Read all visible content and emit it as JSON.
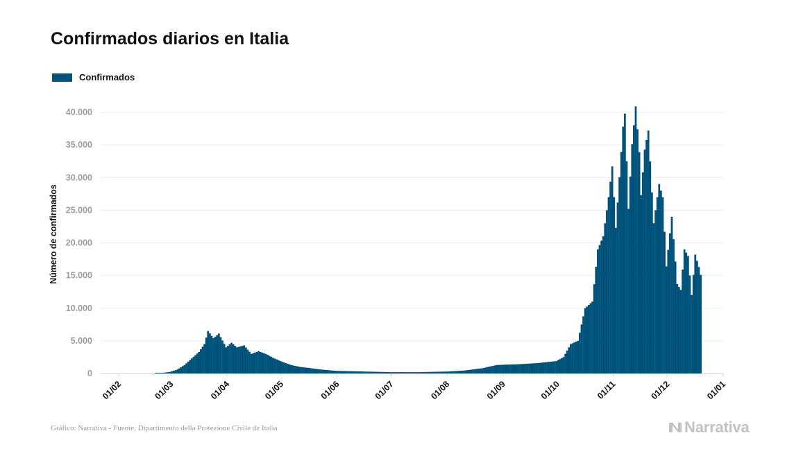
{
  "colors": {
    "bar": "#00527a",
    "grid": "#ececec",
    "tick_text": "#9b9b9b",
    "brand": "#c2c2c2"
  },
  "footer": {
    "source": "Gráfico: Narrativa - Fuente: Dipartimento della Protezione Civile de Italia",
    "brand": "Narrativa",
    "brand_icon": "narrativa-n-logo-icon"
  },
  "chart_data": {
    "type": "bar",
    "title": "Confirmados diarios en Italia",
    "ylabel": "Número de confirmados",
    "xlabel": "",
    "legend": {
      "entries": [
        "Confirmados"
      ],
      "placement": "top-left"
    },
    "grid": true,
    "ylim": [
      0,
      40000
    ],
    "yticks": [
      0,
      5000,
      10000,
      15000,
      20000,
      25000,
      30000,
      35000,
      40000
    ],
    "ytick_labels": [
      "0",
      "5.000",
      "10.000",
      "15.000",
      "20.000",
      "25.000",
      "30.000",
      "35.000",
      "40.000"
    ],
    "xlim": [
      "2020-01-22",
      "2021-01-01"
    ],
    "xticks": [
      "2020-02-01",
      "2020-03-01",
      "2020-04-01",
      "2020-05-01",
      "2020-06-01",
      "2020-07-01",
      "2020-08-01",
      "2020-09-01",
      "2020-10-01",
      "2020-11-01",
      "2020-12-01",
      "2021-01-01"
    ],
    "xtick_labels": [
      "01/02",
      "01/03",
      "01/04",
      "01/05",
      "01/06",
      "01/07",
      "01/08",
      "01/09",
      "01/10",
      "01/11",
      "01/12",
      "01/01"
    ],
    "series": [
      {
        "name": "Confirmados",
        "anchors": [
          [
            "2020-01-24",
            0
          ],
          [
            "2020-02-20",
            0
          ],
          [
            "2020-02-21",
            100
          ],
          [
            "2020-02-25",
            100
          ],
          [
            "2020-02-29",
            250
          ],
          [
            "2020-03-04",
            600
          ],
          [
            "2020-03-08",
            1300
          ],
          [
            "2020-03-12",
            2300
          ],
          [
            "2020-03-16",
            3300
          ],
          [
            "2020-03-19",
            4500
          ],
          [
            "2020-03-21",
            6500
          ],
          [
            "2020-03-24",
            5400
          ],
          [
            "2020-03-27",
            6100
          ],
          [
            "2020-03-31",
            4000
          ],
          [
            "2020-04-03",
            4700
          ],
          [
            "2020-04-06",
            4000
          ],
          [
            "2020-04-10",
            4300
          ],
          [
            "2020-04-14",
            3000
          ],
          [
            "2020-04-18",
            3400
          ],
          [
            "2020-04-22",
            3000
          ],
          [
            "2020-04-26",
            2400
          ],
          [
            "2020-05-01",
            1800
          ],
          [
            "2020-05-06",
            1300
          ],
          [
            "2020-05-11",
            1000
          ],
          [
            "2020-05-16",
            850
          ],
          [
            "2020-05-21",
            650
          ],
          [
            "2020-05-31",
            400
          ],
          [
            "2020-06-15",
            300
          ],
          [
            "2020-07-01",
            200
          ],
          [
            "2020-07-15",
            200
          ],
          [
            "2020-08-01",
            300
          ],
          [
            "2020-08-10",
            450
          ],
          [
            "2020-08-20",
            800
          ],
          [
            "2020-08-28",
            1300
          ],
          [
            "2020-09-08",
            1400
          ],
          [
            "2020-09-20",
            1600
          ],
          [
            "2020-09-30",
            1900
          ],
          [
            "2020-10-04",
            2500
          ],
          [
            "2020-10-08",
            4500
          ],
          [
            "2020-10-12",
            5000
          ],
          [
            "2020-10-16",
            10000
          ],
          [
            "2020-10-20",
            11000
          ],
          [
            "2020-10-23",
            19000
          ],
          [
            "2020-10-26",
            21000
          ],
          [
            "2020-10-29",
            27000
          ],
          [
            "2020-10-31",
            31700
          ],
          [
            "2020-11-02",
            22300
          ],
          [
            "2020-11-06",
            37800
          ],
          [
            "2020-11-07",
            39800
          ],
          [
            "2020-11-09",
            25200
          ],
          [
            "2020-11-11",
            35100
          ],
          [
            "2020-11-13",
            40900
          ],
          [
            "2020-11-15",
            33900
          ],
          [
            "2020-11-16",
            27300
          ],
          [
            "2020-11-18",
            34300
          ],
          [
            "2020-11-20",
            37200
          ],
          [
            "2020-11-23",
            23000
          ],
          [
            "2020-11-26",
            29000
          ],
          [
            "2020-11-28",
            27000
          ],
          [
            "2020-11-30",
            16400
          ],
          [
            "2020-12-03",
            24000
          ],
          [
            "2020-12-06",
            13700
          ],
          [
            "2020-12-08",
            12800
          ],
          [
            "2020-12-10",
            19000
          ],
          [
            "2020-12-12",
            18000
          ],
          [
            "2020-12-14",
            12000
          ],
          [
            "2020-12-16",
            18200
          ],
          [
            "2020-12-18",
            16300
          ],
          [
            "2020-12-19",
            15100
          ]
        ]
      }
    ]
  }
}
